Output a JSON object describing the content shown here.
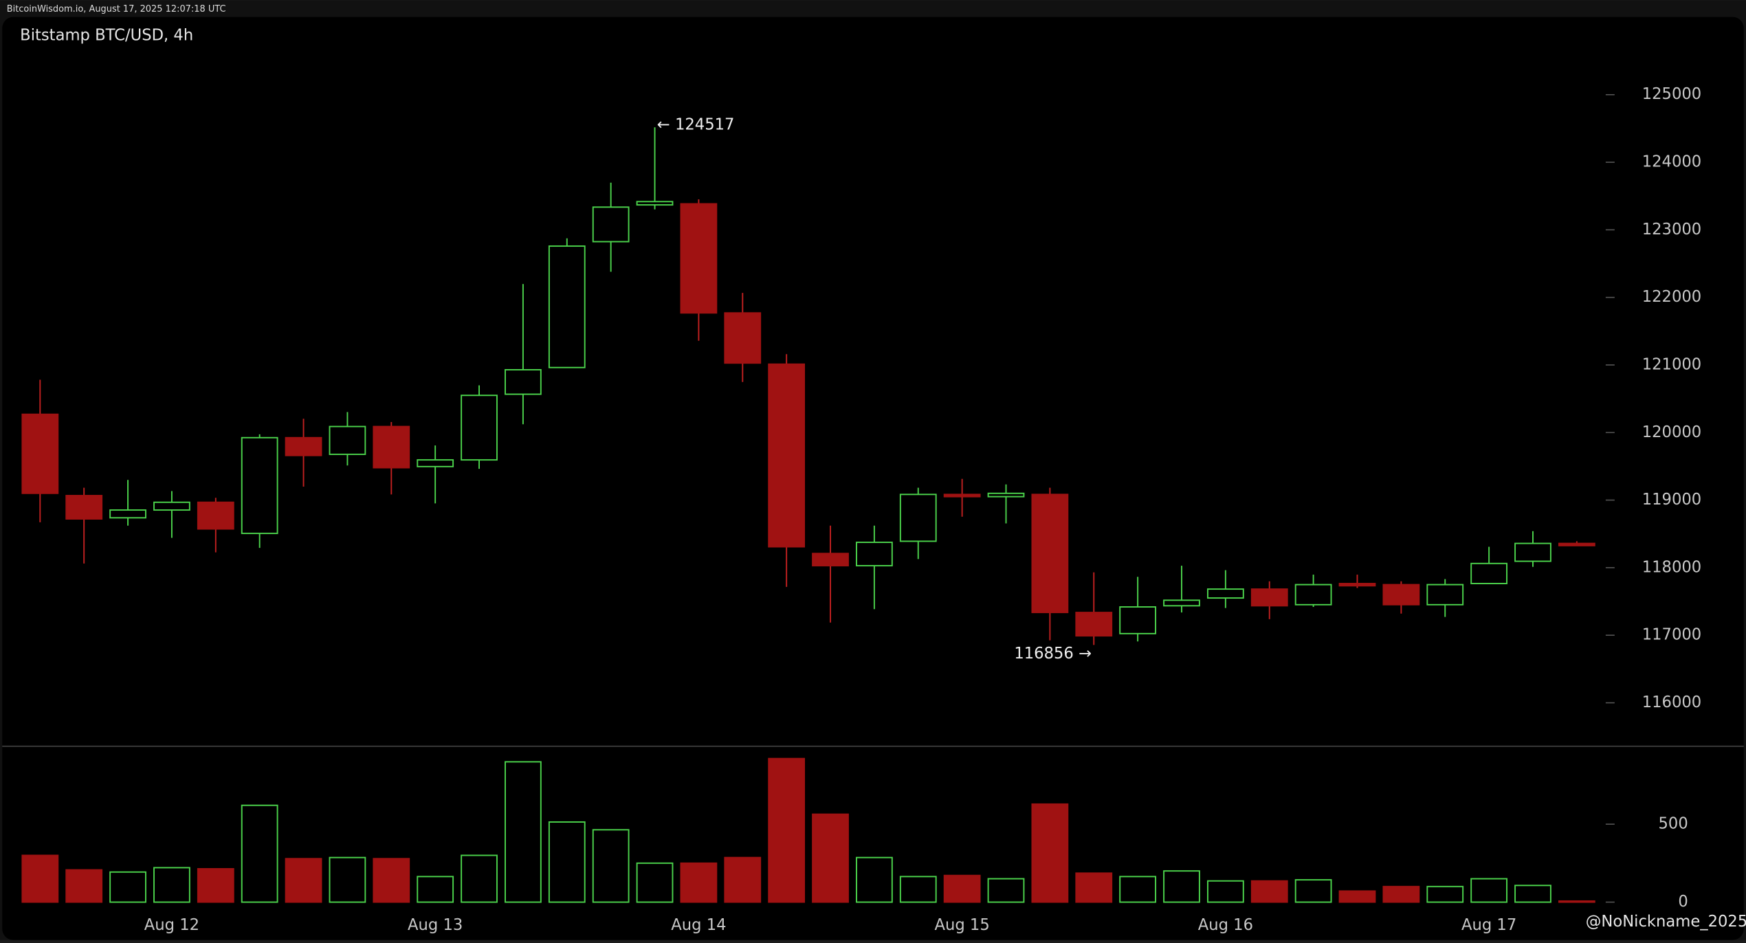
{
  "header": "BitcoinWisdom.io, August 17, 2025 12:07:18 UTC",
  "watermark": "@NoNickname_2025",
  "chart_data": [
    {
      "type": "candlestick",
      "title": "Bitstamp BTC/USD, 4h",
      "categories": [
        null,
        null,
        null,
        "Aug 12",
        null,
        null,
        null,
        null,
        null,
        "Aug 13",
        null,
        null,
        null,
        null,
        null,
        "Aug 14",
        null,
        null,
        null,
        null,
        null,
        "Aug 15",
        null,
        null,
        null,
        null,
        null,
        "Aug 16",
        null,
        null,
        null,
        null,
        null,
        "Aug 17",
        null,
        null
      ],
      "open": [
        120270,
        119067,
        118738,
        118853,
        118968,
        118507,
        119924,
        119677,
        120089,
        119496,
        119595,
        120567,
        120962,
        122825,
        123369,
        123385,
        121770,
        121012,
        118210,
        118029,
        118391,
        119084,
        119051,
        119084,
        117337,
        117024,
        117436,
        117551,
        117683,
        117452,
        117765,
        117749,
        117452,
        117765,
        118095,
        118359
      ],
      "high": [
        120781,
        119183,
        119298,
        119133,
        119034,
        119974,
        120204,
        120303,
        120155,
        119809,
        120699,
        122198,
        122874,
        123698,
        124517,
        123451,
        122067,
        121160,
        118622,
        118622,
        119183,
        119314,
        119232,
        119183,
        117930,
        117864,
        118029,
        117963,
        117798,
        117897,
        117897,
        117798,
        117831,
        118309,
        118540,
        118391
      ],
      "low": [
        118672,
        118062,
        118622,
        118441,
        118227,
        118293,
        119199,
        119512,
        119084,
        118952,
        119463,
        120122,
        120962,
        122380,
        123303,
        121358,
        120748,
        117716,
        117188,
        117386,
        118128,
        118754,
        118655,
        116925,
        116856,
        116908,
        117337,
        117403,
        117238,
        117419,
        117699,
        117320,
        117271,
        117765,
        118012,
        118326
      ],
      "close": [
        119100,
        118721,
        118853,
        118968,
        118573,
        119924,
        119660,
        120089,
        119479,
        119595,
        120550,
        120929,
        122759,
        123336,
        123418,
        121770,
        121028,
        118309,
        118029,
        118375,
        119084,
        119051,
        119100,
        117337,
        116991,
        117419,
        117518,
        117683,
        117436,
        117749,
        117732,
        117452,
        117749,
        118062,
        118359,
        118326
      ],
      "up_color": "#4bd24b",
      "down_color": "#a01212",
      "ylim": [
        115390,
        126150
      ],
      "yticks": [
        116000,
        117000,
        118000,
        119000,
        120000,
        121000,
        122000,
        123000,
        124000,
        125000
      ],
      "high_label": {
        "value": 124517,
        "label": "← 124517"
      },
      "low_label": {
        "value": 116856,
        "label": "116856 →"
      }
    },
    {
      "type": "bar",
      "values": [
        300,
        207,
        193,
        221,
        214,
        621,
        279,
        286,
        279,
        164,
        300,
        900,
        514,
        464,
        250,
        250,
        286,
        921,
        564,
        286,
        164,
        171,
        150,
        629,
        186,
        164,
        200,
        136,
        136,
        143,
        71,
        100,
        100,
        150,
        107,
        7
      ],
      "ylim": [
        0,
        986
      ],
      "yticks": [
        0,
        500
      ]
    }
  ]
}
